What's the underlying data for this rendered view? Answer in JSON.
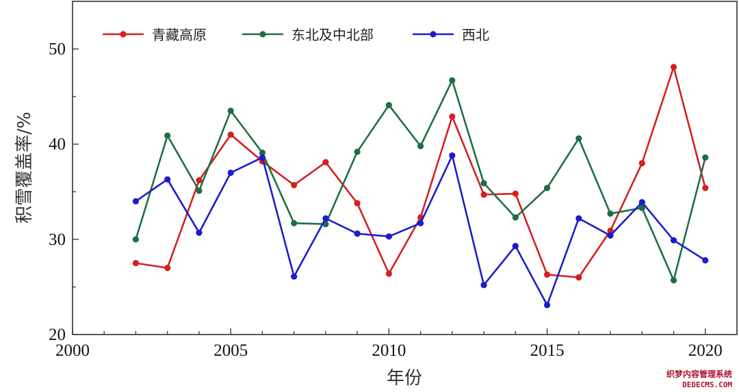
{
  "chart_data": {
    "type": "line",
    "x": [
      2002,
      2003,
      2004,
      2005,
      2006,
      2007,
      2008,
      2009,
      2010,
      2011,
      2012,
      2013,
      2014,
      2015,
      2016,
      2017,
      2018,
      2019,
      2020
    ],
    "series": [
      {
        "name": "青藏高原",
        "color": "#d42020",
        "values": [
          27.5,
          27.0,
          36.2,
          41.0,
          38.2,
          35.7,
          38.1,
          33.8,
          26.4,
          32.3,
          42.9,
          34.7,
          34.8,
          26.3,
          26.0,
          30.9,
          38.0,
          48.1,
          35.4
        ]
      },
      {
        "name": "东北及中北部",
        "color": "#1e6e45",
        "values": [
          30.0,
          40.9,
          35.1,
          43.5,
          39.1,
          31.7,
          31.6,
          39.2,
          44.1,
          39.8,
          46.7,
          35.9,
          32.3,
          35.4,
          40.6,
          32.7,
          33.3,
          25.7,
          38.6
        ]
      },
      {
        "name": "西北",
        "color": "#1c1ccc",
        "values": [
          34.0,
          36.3,
          30.7,
          37.0,
          38.6,
          26.1,
          32.2,
          30.6,
          30.3,
          31.7,
          38.8,
          25.2,
          29.3,
          23.1,
          32.2,
          30.4,
          33.9,
          29.9,
          27.8
        ]
      }
    ],
    "xlabel": "年份",
    "ylabel": "积雪覆盖率/%",
    "xlim": [
      2000,
      2021
    ],
    "ylim": [
      20,
      55
    ],
    "xticks": [
      2000,
      2005,
      2010,
      2015,
      2020
    ],
    "yticks": [
      20,
      30,
      40,
      50
    ],
    "legend_position": "top-left",
    "grid": false
  },
  "watermark": {
    "line1": "织梦内容管理系统",
    "line2": "DEDECMS.COM"
  }
}
